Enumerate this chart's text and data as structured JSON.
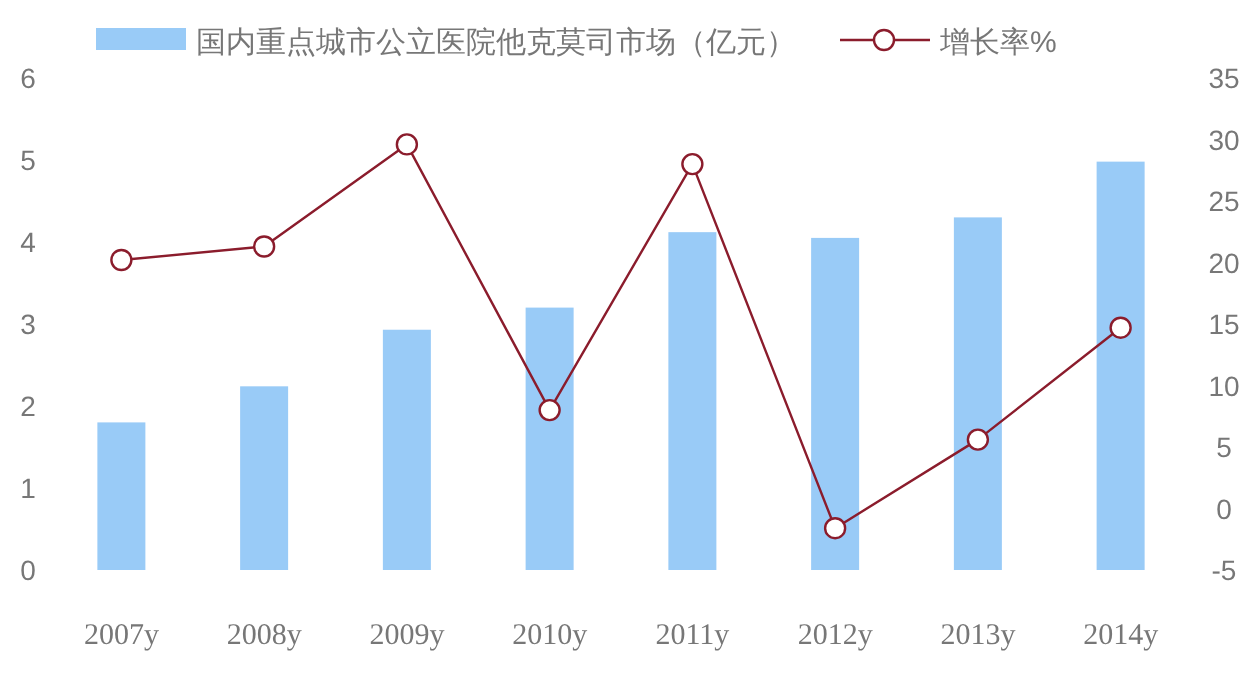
{
  "chart_data": {
    "type": "bar",
    "categories": [
      "2007y",
      "2008y",
      "2009y",
      "2010y",
      "2011y",
      "2012y",
      "2013y",
      "2014y"
    ],
    "series": [
      {
        "name": "国内重点城市公立医院他克莫司市场（亿元）",
        "color": "#99cbf7",
        "values": [
          1.8,
          2.24,
          2.93,
          3.2,
          4.12,
          4.05,
          4.3,
          4.98
        ]
      },
      {
        "name": "增长率%",
        "type": "line",
        "axis": "y2",
        "color": "#8b1c2c",
        "values": [
          20.2,
          21.3,
          29.6,
          8.0,
          28.0,
          -1.6,
          5.6,
          14.7
        ]
      }
    ],
    "ylim": [
      0,
      6
    ],
    "yticks": [
      0,
      1,
      2,
      3,
      4,
      5,
      6
    ],
    "y2lim": [
      -5,
      35
    ],
    "y2ticks": [
      -5,
      0,
      5,
      10,
      15,
      20,
      25,
      30,
      35
    ],
    "legend": "top",
    "marker": "circle"
  }
}
